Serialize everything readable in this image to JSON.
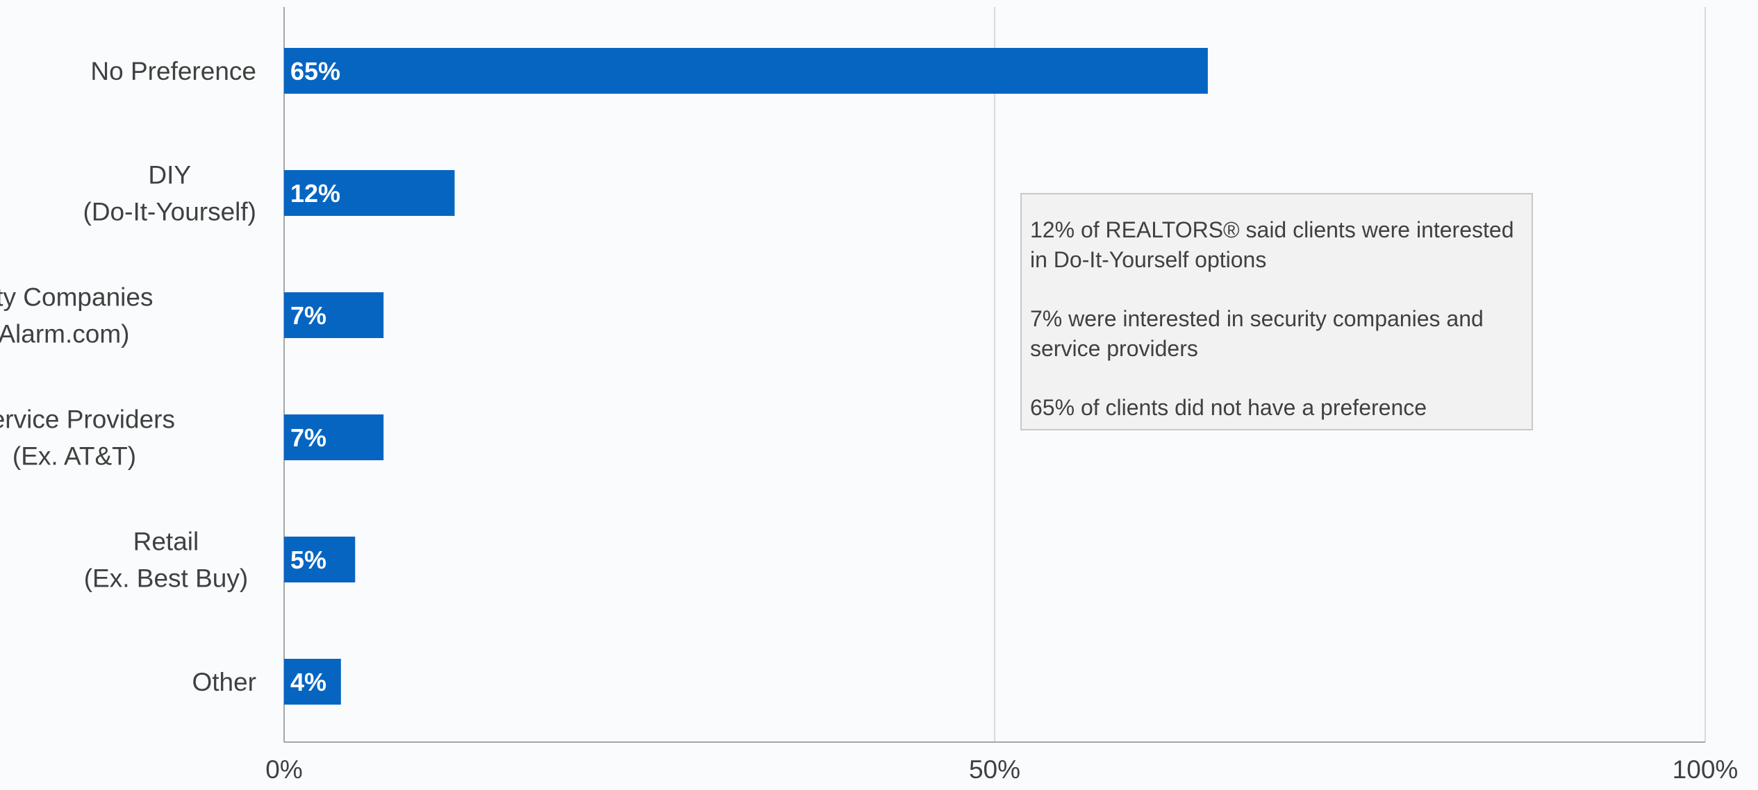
{
  "chart_data": {
    "type": "bar",
    "orientation": "horizontal",
    "categories": [
      [
        "No Preference"
      ],
      [
        "DIY",
        "(Do-It-Yourself)"
      ],
      [
        "Security Companies",
        "(Ex. Alarm.com)"
      ],
      [
        "Service Providers",
        "(Ex. AT&T)"
      ],
      [
        "Retail",
        "(Ex. Best Buy)"
      ],
      [
        "Other"
      ]
    ],
    "values": [
      65,
      12,
      7,
      7,
      5,
      4
    ],
    "data_labels": [
      "65%",
      "12%",
      "7%",
      "7%",
      "5%",
      "4%"
    ],
    "xlim": [
      0,
      100
    ],
    "x_ticks": [
      0,
      50,
      100
    ],
    "x_tick_labels": [
      "0%",
      "50%",
      "100%"
    ],
    "grid": "vertical",
    "title": "",
    "xlabel": "",
    "ylabel": "",
    "bar_color": "#0765c2",
    "grid_color": "#d9d9d9",
    "axis_color": "#a6a6a6"
  },
  "callout": {
    "line1": "12% of REALTORS® said clients were interested in Do-It-Yourself options",
    "line2": "7% were interested in security companies and service providers",
    "line3": "65% of clients did not have a preference"
  }
}
